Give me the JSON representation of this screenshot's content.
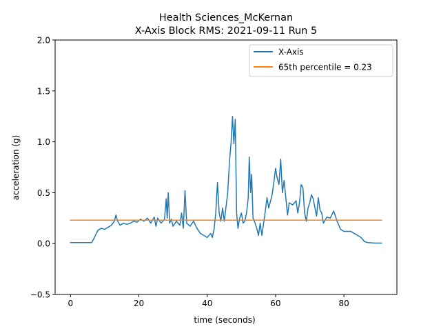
{
  "chart_data": {
    "type": "line",
    "title_line1": "Health Sciences_McKernan",
    "title_line2": "X-Axis Block RMS: 2021-09-11 Run 5",
    "xlabel": "time (seconds)",
    "ylabel": "acceleration (g)",
    "xlim": [
      -4.5,
      95.5
    ],
    "ylim": [
      -0.5,
      2.0
    ],
    "x_ticks": [
      0,
      20,
      40,
      60,
      80
    ],
    "y_ticks": [
      -0.5,
      0.0,
      0.5,
      1.0,
      1.5,
      2.0
    ],
    "x_tick_labels": [
      "0",
      "20",
      "40",
      "60",
      "80"
    ],
    "y_tick_labels": [
      "−0.5",
      "0.0",
      "0.5",
      "1.0",
      "1.5",
      "2.0"
    ],
    "grid": false,
    "legend_position": "top-right",
    "series": [
      {
        "name": "X-Axis",
        "color": "#1f77b4",
        "points": [
          [
            0,
            0.01
          ],
          [
            5,
            0.01
          ],
          [
            6.2,
            0.01
          ],
          [
            7,
            0.06
          ],
          [
            8,
            0.13
          ],
          [
            9,
            0.15
          ],
          [
            10,
            0.14
          ],
          [
            11,
            0.16
          ],
          [
            12,
            0.18
          ],
          [
            12.8,
            0.22
          ],
          [
            13.3,
            0.28
          ],
          [
            13.8,
            0.22
          ],
          [
            14.5,
            0.18
          ],
          [
            15.5,
            0.2
          ],
          [
            16.5,
            0.19
          ],
          [
            17.5,
            0.2
          ],
          [
            18.5,
            0.22
          ],
          [
            19.5,
            0.21
          ],
          [
            20.5,
            0.24
          ],
          [
            21.5,
            0.22
          ],
          [
            22.5,
            0.25
          ],
          [
            23.5,
            0.2
          ],
          [
            24.5,
            0.26
          ],
          [
            25,
            0.17
          ],
          [
            25.5,
            0.25
          ],
          [
            26.5,
            0.2
          ],
          [
            27.5,
            0.24
          ],
          [
            28,
            0.44
          ],
          [
            28.3,
            0.25
          ],
          [
            28.6,
            0.5
          ],
          [
            29,
            0.2
          ],
          [
            29.5,
            0.24
          ],
          [
            30,
            0.17
          ],
          [
            31,
            0.22
          ],
          [
            32,
            0.18
          ],
          [
            32.5,
            0.3
          ],
          [
            33,
            0.15
          ],
          [
            33.5,
            0.52
          ],
          [
            34,
            0.2
          ],
          [
            35,
            0.17
          ],
          [
            36,
            0.22
          ],
          [
            37,
            0.15
          ],
          [
            38,
            0.1
          ],
          [
            39,
            0.08
          ],
          [
            40,
            0.06
          ],
          [
            41,
            0.1
          ],
          [
            41.5,
            0.06
          ],
          [
            42,
            0.14
          ],
          [
            42.5,
            0.3
          ],
          [
            43,
            0.6
          ],
          [
            43.5,
            0.3
          ],
          [
            44,
            0.22
          ],
          [
            44.5,
            0.35
          ],
          [
            45,
            0.22
          ],
          [
            46,
            0.5
          ],
          [
            46.5,
            0.8
          ],
          [
            47,
            1.0
          ],
          [
            47.4,
            1.25
          ],
          [
            47.8,
            0.98
          ],
          [
            48.2,
            1.22
          ],
          [
            48.6,
            0.3
          ],
          [
            49,
            0.15
          ],
          [
            49.5,
            0.25
          ],
          [
            50,
            0.3
          ],
          [
            50.5,
            0.2
          ],
          [
            51,
            0.22
          ],
          [
            51.5,
            0.3
          ],
          [
            52,
            0.45
          ],
          [
            52.3,
            0.85
          ],
          [
            52.7,
            0.5
          ],
          [
            53,
            0.68
          ],
          [
            53.4,
            0.25
          ],
          [
            53.8,
            0.22
          ],
          [
            54.5,
            0.15
          ],
          [
            55,
            0.08
          ],
          [
            55.5,
            0.2
          ],
          [
            56,
            0.08
          ],
          [
            56.5,
            0.2
          ],
          [
            57,
            0.32
          ],
          [
            57.5,
            0.45
          ],
          [
            58,
            0.35
          ],
          [
            59,
            0.48
          ],
          [
            59.5,
            0.6
          ],
          [
            60,
            0.74
          ],
          [
            60.5,
            0.64
          ],
          [
            61,
            0.58
          ],
          [
            61.5,
            0.83
          ],
          [
            62,
            0.5
          ],
          [
            62.5,
            0.62
          ],
          [
            63,
            0.45
          ],
          [
            63.5,
            0.28
          ],
          [
            64,
            0.4
          ],
          [
            65,
            0.38
          ],
          [
            66,
            0.42
          ],
          [
            66.5,
            0.3
          ],
          [
            67,
            0.4
          ],
          [
            67.5,
            0.58
          ],
          [
            68,
            0.55
          ],
          [
            68.5,
            0.3
          ],
          [
            69,
            0.22
          ],
          [
            69.5,
            0.35
          ],
          [
            70,
            0.4
          ],
          [
            70.5,
            0.48
          ],
          [
            71,
            0.44
          ],
          [
            72,
            0.27
          ],
          [
            72.5,
            0.45
          ],
          [
            73,
            0.33
          ],
          [
            73.5,
            0.3
          ],
          [
            74,
            0.2
          ],
          [
            75,
            0.26
          ],
          [
            76,
            0.25
          ],
          [
            77,
            0.32
          ],
          [
            78,
            0.22
          ],
          [
            79,
            0.14
          ],
          [
            80,
            0.12
          ],
          [
            81,
            0.12
          ],
          [
            82,
            0.12
          ],
          [
            83,
            0.1
          ],
          [
            84,
            0.08
          ],
          [
            85,
            0.06
          ],
          [
            86,
            0.02
          ],
          [
            87,
            0.01
          ],
          [
            89,
            0.005
          ],
          [
            91,
            0.005
          ]
        ]
      },
      {
        "name": "65th percentile = 0.23",
        "color": "#ff7f0e",
        "points": [
          [
            0,
            0.23
          ],
          [
            91,
            0.23
          ]
        ]
      }
    ]
  }
}
